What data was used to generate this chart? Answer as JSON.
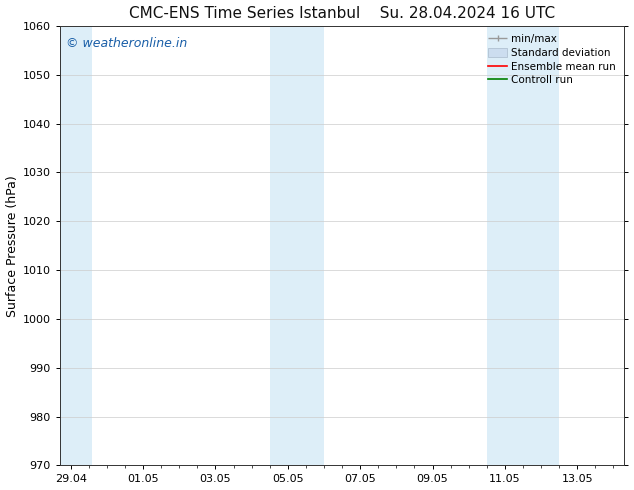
{
  "title_left": "CMC-ENS Time Series Istanbul",
  "title_right": "Su. 28.04.2024 16 UTC",
  "ylabel": "Surface Pressure (hPa)",
  "ylim": [
    970,
    1060
  ],
  "yticks": [
    970,
    980,
    990,
    1000,
    1010,
    1020,
    1030,
    1040,
    1050,
    1060
  ],
  "xtick_labels": [
    "29.04",
    "01.05",
    "03.05",
    "05.05",
    "07.05",
    "09.05",
    "11.05",
    "13.05"
  ],
  "xtick_positions": [
    0,
    2,
    4,
    6,
    8,
    10,
    12,
    14
  ],
  "xlim": [
    -0.3,
    15.3
  ],
  "shaded_bands": [
    {
      "x_start": -0.3,
      "x_end": 0.6,
      "color": "#ddeef8"
    },
    {
      "x_start": 5.5,
      "x_end": 7.0,
      "color": "#ddeef8"
    },
    {
      "x_start": 11.5,
      "x_end": 13.5,
      "color": "#ddeef8"
    }
  ],
  "watermark_text": "© weatheronline.in",
  "watermark_color": "#1a5fa8",
  "watermark_fontsize": 9,
  "bg_color": "#ffffff",
  "grid_color": "#cccccc",
  "title_fontsize": 11,
  "axis_label_fontsize": 9,
  "tick_fontsize": 8,
  "legend_fontsize": 7.5
}
